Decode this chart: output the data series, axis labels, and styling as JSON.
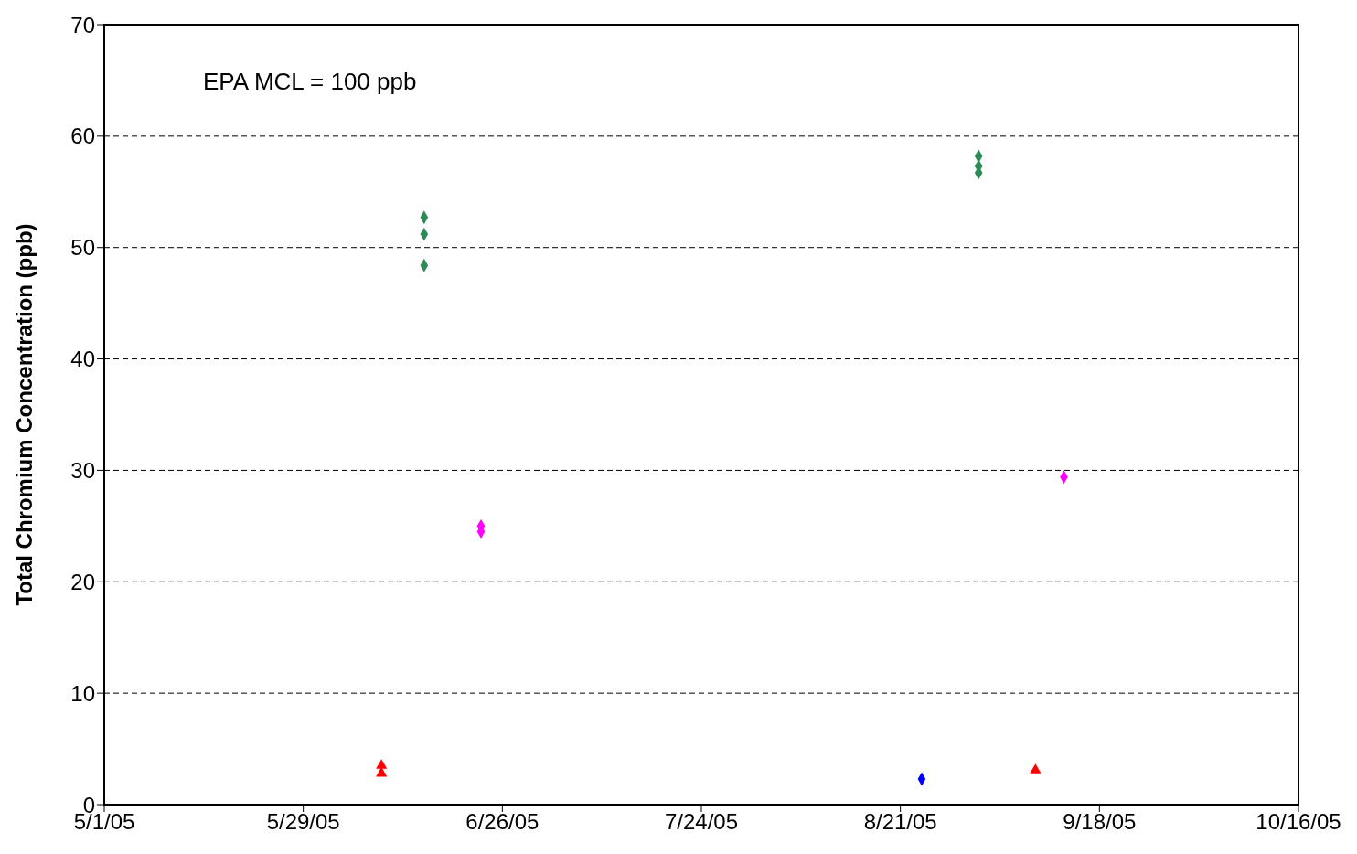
{
  "chart_data": {
    "type": "scatter",
    "ylabel": "Total Chromium Concentration (ppb)",
    "annotations": [
      "EPA MCL = 100 ppb"
    ],
    "xlim": [
      "2005-05-01",
      "2005-10-16"
    ],
    "xticks": [
      {
        "value": "2005-05-01",
        "label": "5/1/05"
      },
      {
        "value": "2005-05-29",
        "label": "5/29/05"
      },
      {
        "value": "2005-06-26",
        "label": "6/26/05"
      },
      {
        "value": "2005-07-24",
        "label": "7/24/05"
      },
      {
        "value": "2005-08-21",
        "label": "8/21/05"
      },
      {
        "value": "2005-09-18",
        "label": "9/18/05"
      },
      {
        "value": "2005-10-16",
        "label": "10/16/05"
      }
    ],
    "ylim": [
      0,
      70
    ],
    "yticks": [
      0,
      10,
      20,
      30,
      40,
      50,
      60,
      70
    ],
    "grid": "y",
    "series": [
      {
        "color": "#2e8b57",
        "marker": "diamond",
        "x": [
          "2005-06-15",
          "2005-06-15",
          "2005-06-15",
          "2005-09-01",
          "2005-09-01",
          "2005-09-01"
        ],
        "values": [
          52.7,
          51.2,
          48.4,
          58.2,
          57.3,
          56.7
        ]
      },
      {
        "color": "#ff00ff",
        "marker": "diamond",
        "x": [
          "2005-06-23",
          "2005-06-23",
          "2005-09-13"
        ],
        "values": [
          25.0,
          24.5,
          29.4
        ]
      },
      {
        "color": "#0000ff",
        "marker": "diamond",
        "x": [
          "2005-08-24"
        ],
        "values": [
          2.3
        ]
      },
      {
        "color": "#ff0000",
        "marker": "triangle",
        "x": [
          "2005-06-09",
          "2005-06-09",
          "2005-09-09"
        ],
        "values": [
          3.5,
          2.8,
          3.1
        ]
      }
    ]
  }
}
